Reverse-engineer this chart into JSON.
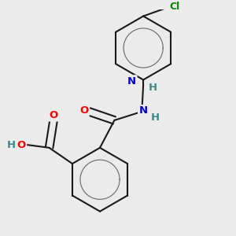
{
  "background_color": "#ebebeb",
  "bond_color": "#1a1a1a",
  "bond_width": 1.5,
  "atom_colors": {
    "O": "#ff0000",
    "N": "#0000cc",
    "Cl": "#008800",
    "H": "#3a8a8a",
    "C": "#1a1a1a"
  },
  "font_size": 9.5,
  "font_size_cl": 9.0,
  "xlim": [
    -0.6,
    2.2
  ],
  "ylim": [
    -1.5,
    1.6
  ]
}
